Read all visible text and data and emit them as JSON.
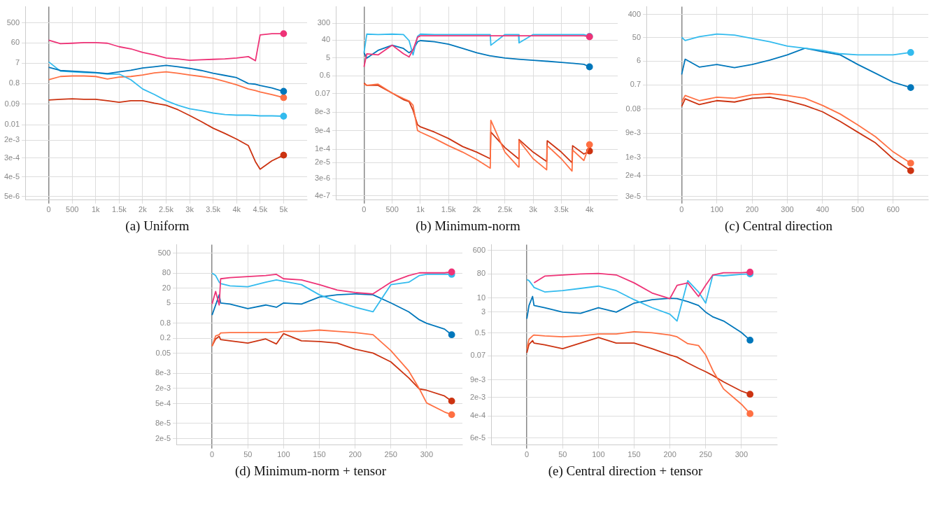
{
  "chart_data": [
    {
      "type": "line",
      "title": "(a) Uniform",
      "log": true,
      "grid": true,
      "x": [
        0,
        250,
        500,
        750,
        1000,
        1250,
        1500,
        1750,
        2000,
        2250,
        2500,
        2750,
        3000,
        3250,
        3500,
        3750,
        4000,
        4250,
        4400,
        4500,
        4750,
        5000
      ],
      "xlim": [
        -500,
        5500
      ],
      "xticks": [
        0,
        500,
        {
          "value": 1000,
          "label": "1k"
        },
        {
          "value": 1500,
          "label": "1.5k"
        },
        {
          "value": 2000,
          "label": "2k"
        },
        {
          "value": 2500,
          "label": "2.5k"
        },
        {
          "value": 3000,
          "label": "3k"
        },
        {
          "value": 3500,
          "label": "3.5k"
        },
        {
          "value": 4000,
          "label": "4k"
        },
        {
          "value": 4500,
          "label": "4.5k"
        },
        {
          "value": 5000,
          "label": "5k"
        }
      ],
      "ylim": [
        3.4e-06,
        2800
      ],
      "yticks": [
        500,
        60,
        7,
        0.8,
        0.09,
        0.01,
        {
          "value": 0.002,
          "label": "2e-3"
        },
        {
          "value": 0.0003,
          "label": "3e-4"
        },
        {
          "value": 4e-05,
          "label": "4e-5"
        },
        {
          "value": 5e-06,
          "label": "5e-6"
        }
      ],
      "series": [
        {
          "color": "#ee3377",
          "values": [
            80,
            55,
            58,
            62,
            62,
            58,
            40,
            32,
            22,
            17,
            12,
            11,
            9.5,
            10,
            10.5,
            11,
            12,
            14,
            9,
            140,
            160,
            160
          ]
        },
        {
          "color": "#0077bb",
          "values": [
            4.5,
            3.2,
            3.0,
            2.8,
            2.6,
            2.3,
            2.8,
            3.3,
            4.2,
            4.8,
            5.5,
            4.8,
            4.0,
            3.2,
            2.4,
            1.9,
            1.5,
            0.8,
            0.75,
            0.65,
            0.5,
            0.35
          ]
        },
        {
          "color": "#33bbee",
          "values": [
            8,
            3.0,
            2.8,
            2.6,
            2.5,
            2.2,
            2.2,
            1.2,
            0.45,
            0.25,
            0.13,
            0.08,
            0.055,
            0.045,
            0.035,
            0.03,
            0.028,
            0.028,
            0.027,
            0.026,
            0.026,
            0.025
          ]
        },
        {
          "color": "#ff7043",
          "values": [
            1.2,
            1.7,
            1.8,
            1.8,
            1.7,
            1.3,
            1.6,
            1.7,
            2.0,
            2.5,
            2.8,
            2.4,
            2.0,
            1.7,
            1.4,
            1.0,
            0.7,
            0.45,
            0.38,
            0.33,
            0.25,
            0.18
          ]
        },
        {
          "color": "#cc3311",
          "values": [
            0.14,
            0.15,
            0.16,
            0.15,
            0.15,
            0.13,
            0.11,
            0.13,
            0.13,
            0.1,
            0.08,
            0.05,
            0.027,
            0.014,
            0.007,
            0.004,
            0.0022,
            0.0011,
            0.0002,
            9e-05,
            0.00022,
            0.0004
          ]
        }
      ]
    },
    {
      "type": "line",
      "title": "(b) Minimum-norm",
      "log": true,
      "grid": true,
      "x": [
        0,
        50,
        250,
        500,
        700,
        800,
        870,
        950,
        1000,
        1250,
        1500,
        1750,
        2000,
        2240,
        2250,
        2500,
        2740,
        2750,
        3000,
        3240,
        3250,
        3500,
        3690,
        3700,
        3900,
        4000
      ],
      "xlim": [
        -500,
        4500
      ],
      "xticks": [
        0,
        500,
        {
          "value": 1000,
          "label": "1k"
        },
        {
          "value": 1500,
          "label": "1.5k"
        },
        {
          "value": 2000,
          "label": "2k"
        },
        {
          "value": 2500,
          "label": "2.5k"
        },
        {
          "value": 3000,
          "label": "3k"
        },
        {
          "value": 3500,
          "label": "3.5k"
        },
        {
          "value": 4000,
          "label": "4k"
        }
      ],
      "ylim": [
        2.4e-07,
        2100
      ],
      "yticks": [
        300,
        40,
        5,
        0.6,
        0.07,
        {
          "value": 0.008,
          "label": "8e-3"
        },
        {
          "value": 0.0009,
          "label": "9e-4"
        },
        {
          "value": 0.0001,
          "label": "1e-4"
        },
        {
          "value": 2e-05,
          "label": "2e-5"
        },
        {
          "value": 3e-06,
          "label": "3e-6"
        },
        {
          "value": 4e-07,
          "label": "4e-7"
        }
      ],
      "series": [
        {
          "color": "#ee3377",
          "values": [
            1.7,
            8,
            7,
            22,
            8,
            5.5,
            13,
            56,
            67,
            67,
            67,
            67,
            67,
            67,
            67,
            67,
            67,
            67,
            67,
            67,
            67,
            67,
            67,
            67,
            67,
            60
          ]
        },
        {
          "color": "#33bbee",
          "values": [
            9,
            82,
            78,
            82,
            78,
            38,
            7,
            63,
            82,
            78,
            78,
            78,
            78,
            78,
            22,
            78,
            78,
            29,
            78,
            78,
            78,
            78,
            78,
            78,
            78,
            63
          ]
        },
        {
          "color": "#0077bb",
          "values": [
            9,
            4.8,
            12,
            22,
            15,
            9,
            13,
            33,
            38,
            33,
            25,
            15,
            9,
            6.2,
            6.2,
            4.8,
            4.2,
            4.2,
            3.7,
            3.3,
            3.3,
            2.9,
            2.6,
            2.6,
            2.3,
            1.7
          ]
        },
        {
          "color": "#ff7043",
          "values": [
            0.22,
            0.19,
            0.22,
            0.076,
            0.04,
            0.03,
            0.018,
            0.0009,
            0.00075,
            0.00035,
            0.00015,
            7e-05,
            2.9e-05,
            1.05e-05,
            0.003,
            7e-05,
            1.2e-05,
            0.00027,
            3.2e-05,
            8.6e-06,
            0.00015,
            3.2e-05,
            7.4e-06,
            9e-05,
            2.6e-05,
            0.00017
          ]
        },
        {
          "color": "#cc3311",
          "values": [
            0.25,
            0.19,
            0.19,
            0.076,
            0.035,
            0.028,
            0.01,
            0.0018,
            0.0014,
            0.00075,
            0.00035,
            0.000135,
            7e-05,
            3.2e-05,
            0.00075,
            0.00012,
            3.2e-05,
            0.00031,
            7e-05,
            2.3e-05,
            0.00027,
            7e-05,
            2e-05,
            0.00015,
            5.6e-05,
            8e-05
          ]
        }
      ]
    },
    {
      "type": "line",
      "title": "(c) Central direction",
      "log": true,
      "grid": true,
      "x": [
        0,
        10,
        50,
        100,
        150,
        200,
        250,
        300,
        350,
        400,
        450,
        500,
        550,
        600,
        650
      ],
      "xlim": [
        -100,
        700
      ],
      "xticks": [
        0,
        100,
        200,
        300,
        400,
        500,
        600
      ],
      "ylim": [
        2.2e-05,
        800
      ],
      "yticks": [
        400,
        50,
        6,
        0.7,
        0.08,
        {
          "value": 0.009,
          "label": "9e-3"
        },
        {
          "value": 0.001,
          "label": "1e-3"
        },
        {
          "value": 0.0002,
          "label": "2e-4"
        },
        {
          "value": 3e-05,
          "label": "3e-5"
        }
      ],
      "series": [
        {
          "color": "#33bbee",
          "values": [
            51,
            38,
            54,
            68,
            62,
            46,
            34,
            23,
            19,
            15.6,
            11.6,
            10.5,
            10.5,
            10.5,
            13
          ]
        },
        {
          "color": "#0077bb",
          "values": [
            1.8,
            7.1,
            3.5,
            4.4,
            3.3,
            4.4,
            6.5,
            10.5,
            19,
            14,
            10.5,
            4.4,
            2.0,
            0.9,
            0.55
          ]
        },
        {
          "color": "#ff7043",
          "values": [
            0.15,
            0.27,
            0.17,
            0.23,
            0.21,
            0.29,
            0.32,
            0.27,
            0.21,
            0.11,
            0.051,
            0.019,
            0.0066,
            0.0017,
            0.00061
          ]
        },
        {
          "color": "#cc3311",
          "values": [
            0.1,
            0.2,
            0.12,
            0.17,
            0.15,
            0.21,
            0.23,
            0.17,
            0.11,
            0.062,
            0.026,
            0.0099,
            0.0038,
            0.00091,
            0.00031
          ]
        }
      ]
    },
    {
      "type": "line",
      "title": "(d) Minimum-norm + tensor",
      "log": true,
      "grid": true,
      "x": [
        0,
        5,
        10,
        12,
        25,
        50,
        75,
        90,
        100,
        125,
        150,
        175,
        200,
        225,
        250,
        275,
        290,
        300,
        325,
        335
      ],
      "xlim": [
        -50,
        350
      ],
      "xticks": [
        0,
        50,
        100,
        150,
        200,
        250,
        300
      ],
      "ylim": [
        1.1e-05,
        1100
      ],
      "yticks": [
        500,
        80,
        20,
        5,
        0.8,
        0.2,
        0.05,
        {
          "value": 0.008,
          "label": "8e-3"
        },
        {
          "value": 0.002,
          "label": "2e-3"
        },
        {
          "value": 0.0005,
          "label": "5e-4"
        },
        {
          "value": 8e-05,
          "label": "8e-5"
        },
        {
          "value": 2e-05,
          "label": "2e-5"
        }
      ],
      "series": [
        {
          "color": "#ee3377",
          "values": [
            4.7,
            15,
            4.3,
            48,
            53,
            59,
            65,
            72,
            48,
            43,
            28,
            17,
            13.5,
            12,
            35,
            65,
            83,
            83,
            83,
            90
          ]
        },
        {
          "color": "#33bbee",
          "values": [
            80,
            65,
            35,
            31,
            25,
            23,
            35,
            43,
            38,
            28,
            11,
            5.9,
            3.5,
            2.3,
            28,
            35,
            65,
            72,
            72,
            72
          ]
        },
        {
          "color": "#0077bb",
          "values": [
            1.7,
            4.3,
            11,
            5.2,
            4.7,
            3.1,
            4.3,
            3.5,
            5.2,
            4.7,
            8.9,
            11,
            12,
            11,
            5.2,
            2.3,
            1.1,
            0.8,
            0.47,
            0.28
          ]
        },
        {
          "color": "#ff7043",
          "values": [
            0.099,
            0.25,
            0.28,
            0.33,
            0.34,
            0.34,
            0.34,
            0.34,
            0.38,
            0.38,
            0.43,
            0.38,
            0.34,
            0.28,
            0.065,
            0.01,
            0.0019,
            0.00053,
            0.00023,
            0.00018
          ]
        },
        {
          "color": "#cc3311",
          "values": [
            0.099,
            0.19,
            0.24,
            0.18,
            0.16,
            0.13,
            0.19,
            0.12,
            0.31,
            0.16,
            0.15,
            0.13,
            0.074,
            0.052,
            0.023,
            0.0053,
            0.0019,
            0.0017,
            0.001,
            0.00063
          ]
        }
      ]
    },
    {
      "type": "line",
      "title": "(e) Central direction + tensor",
      "log": true,
      "grid": true,
      "x": [
        0,
        3,
        8,
        10,
        25,
        50,
        75,
        100,
        125,
        150,
        175,
        200,
        210,
        225,
        240,
        250,
        260,
        275,
        300,
        312
      ],
      "xlim": [
        -50,
        350
      ],
      "xticks": [
        0,
        50,
        100,
        150,
        200,
        250,
        300
      ],
      "ylim": [
        3.3e-05,
        980
      ],
      "yticks": [
        600,
        80,
        10,
        3,
        0.5,
        0.07,
        {
          "value": 0.009,
          "label": "9e-3"
        },
        {
          "value": 0.002,
          "label": "2e-3"
        },
        {
          "value": 0.0004,
          "label": "4e-4"
        },
        {
          "value": 6e-05,
          "label": "6e-5"
        }
      ],
      "series": [
        {
          "color": "#ee3377",
          "values": [
            null,
            null,
            null,
            37,
            66,
            73,
            80,
            83,
            73,
            37,
            15.5,
            9.6,
            30,
            37,
            11.5,
            30,
            73,
            88,
            88,
            93
          ]
        },
        {
          "color": "#33bbee",
          "values": [
            49,
            45,
            30,
            25,
            17,
            19,
            23,
            28,
            19,
            8.7,
            4.4,
            2.5,
            1.4,
            45,
            17,
            6.5,
            73,
            68,
            77,
            80
          ]
        },
        {
          "color": "#0077bb",
          "values": [
            1.7,
            5.3,
            11.5,
            5.3,
            4.4,
            3.0,
            2.7,
            4.4,
            3.0,
            6.5,
            8.7,
            9.8,
            9.6,
            7.4,
            5.3,
            3.0,
            2.0,
            1.4,
            0.52,
            0.27
          ]
        },
        {
          "color": "#ff7043",
          "values": [
            0.13,
            0.29,
            0.39,
            0.42,
            0.39,
            0.36,
            0.39,
            0.46,
            0.46,
            0.56,
            0.51,
            0.42,
            0.36,
            0.2,
            0.17,
            0.076,
            0.02,
            0.0041,
            0.0011,
            0.00049
          ]
        },
        {
          "color": "#cc3311",
          "values": [
            0.091,
            0.19,
            0.26,
            0.21,
            0.18,
            0.13,
            0.21,
            0.34,
            0.21,
            0.21,
            0.13,
            0.076,
            0.063,
            0.038,
            0.024,
            0.018,
            0.013,
            0.0075,
            0.0034,
            0.0026
          ]
        }
      ]
    }
  ]
}
